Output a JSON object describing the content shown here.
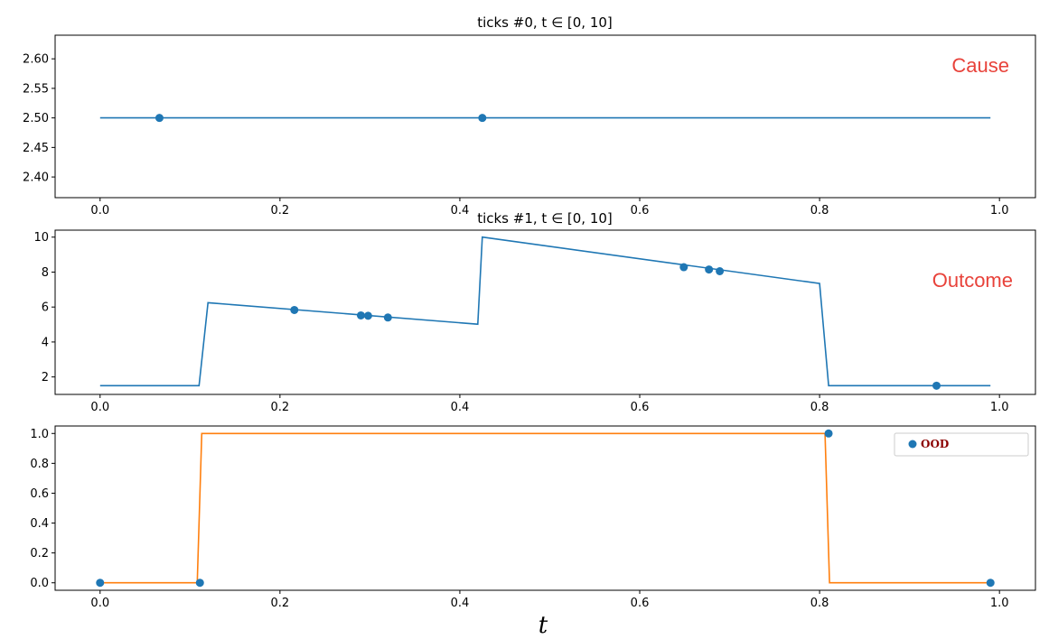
{
  "chart_data": [
    {
      "type": "line",
      "title": "ticks #0, t ∈ [0, 10]",
      "xlim": [
        -0.05,
        1.04
      ],
      "ylim": [
        2.365,
        2.64
      ],
      "xticks": [
        0.0,
        0.2,
        0.4,
        0.6,
        0.8,
        1.0
      ],
      "xtick_labels": [
        "0.0",
        "0.2",
        "0.4",
        "0.6",
        "0.8",
        "1.0"
      ],
      "yticks": [
        2.4,
        2.45,
        2.5,
        2.55,
        2.6
      ],
      "ytick_labels": [
        "2.40",
        "2.45",
        "2.50",
        "2.55",
        "2.60"
      ],
      "line": {
        "x": [
          0.0,
          0.99
        ],
        "y": [
          2.5,
          2.5
        ],
        "color": "#1f77b4"
      },
      "points": {
        "x": [
          0.066,
          0.425
        ],
        "y": [
          2.5,
          2.5
        ],
        "color": "#1f77b4"
      },
      "annotation": {
        "text": "Cause",
        "color": "#e8423a"
      }
    },
    {
      "type": "line",
      "title": "ticks #1, t ∈ [0, 10]",
      "xlim": [
        -0.05,
        1.04
      ],
      "ylim": [
        1.0,
        10.4
      ],
      "xticks": [
        0.0,
        0.2,
        0.4,
        0.6,
        0.8,
        1.0
      ],
      "xtick_labels": [
        "0.0",
        "0.2",
        "0.4",
        "0.6",
        "0.8",
        "1.0"
      ],
      "yticks": [
        2,
        4,
        6,
        8,
        10
      ],
      "ytick_labels": [
        "2",
        "4",
        "6",
        "8",
        "10"
      ],
      "line": {
        "x": [
          0.0,
          0.11,
          0.12,
          0.42,
          0.425,
          0.8,
          0.81,
          0.99
        ],
        "y": [
          1.5,
          1.5,
          6.25,
          5.02,
          10.0,
          7.35,
          1.5,
          1.5
        ],
        "color": "#1f77b4"
      },
      "points": {
        "x": [
          0.216,
          0.29,
          0.298,
          0.32,
          0.649,
          0.677,
          0.689,
          0.93
        ],
        "y": [
          5.83,
          5.52,
          5.5,
          5.4,
          8.28,
          8.15,
          8.05,
          1.5
        ],
        "color": "#1f77b4"
      },
      "annotation": {
        "text": "Outcome",
        "color": "#e8423a"
      }
    },
    {
      "type": "line",
      "title": "",
      "xlabel": "t",
      "xlim": [
        -0.05,
        1.04
      ],
      "ylim": [
        -0.05,
        1.05
      ],
      "xticks": [
        0.0,
        0.2,
        0.4,
        0.6,
        0.8,
        1.0
      ],
      "xtick_labels": [
        "0.0",
        "0.2",
        "0.4",
        "0.6",
        "0.8",
        "1.0"
      ],
      "yticks": [
        0.0,
        0.2,
        0.4,
        0.6,
        0.8,
        1.0
      ],
      "ytick_labels": [
        "0.0",
        "0.2",
        "0.4",
        "0.6",
        "0.8",
        "1.0"
      ],
      "line": {
        "x": [
          0.0,
          0.108,
          0.113,
          0.806,
          0.811,
          0.99
        ],
        "y": [
          0.0,
          0.0,
          1.0,
          1.0,
          0.0,
          0.0
        ],
        "color": "#ff7f0e"
      },
      "points": {
        "x": [
          0.0,
          0.111,
          0.81,
          0.99
        ],
        "y": [
          0.0,
          0.0,
          1.0,
          0.0
        ],
        "color": "#1f77b4"
      },
      "legend": {
        "text": "OOD",
        "color": "#8b0000",
        "placement": "top-right"
      }
    }
  ]
}
